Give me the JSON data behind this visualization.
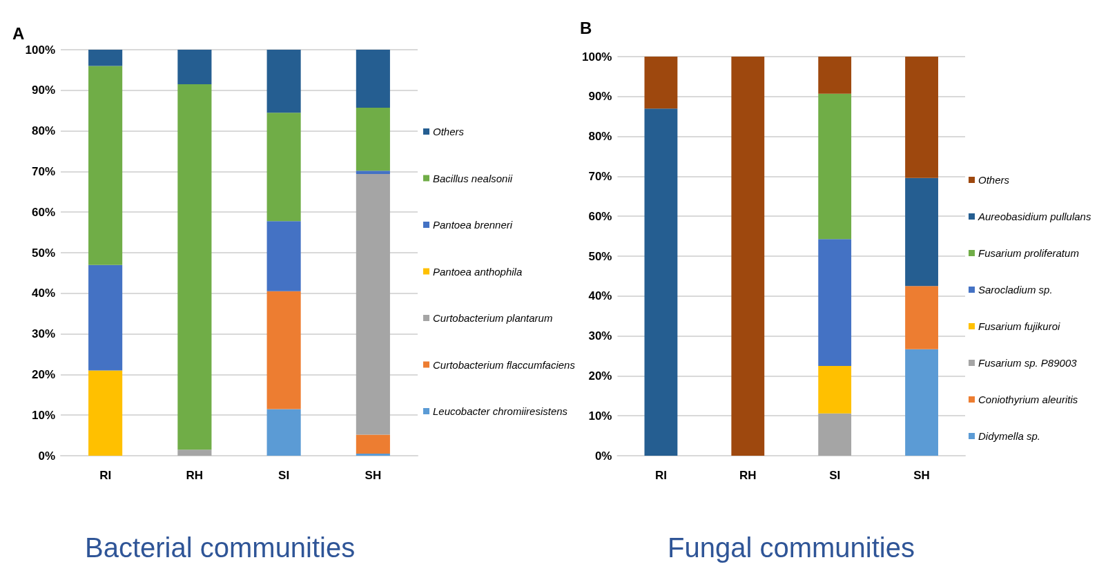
{
  "chart_data": [
    {
      "type": "bar",
      "title": "A",
      "stacked": true,
      "categories": [
        "RI",
        "RH",
        "SI",
        "SH"
      ],
      "ylim": [
        0,
        100
      ],
      "yticks": [
        {
          "value": 0,
          "label": "0%"
        },
        {
          "value": 10,
          "label": "10%"
        },
        {
          "value": 20,
          "label": "20%"
        },
        {
          "value": 30,
          "label": "30%"
        },
        {
          "value": 40,
          "label": "40%"
        },
        {
          "value": 50,
          "label": "50%"
        },
        {
          "value": 60,
          "label": "60%"
        },
        {
          "value": 70,
          "label": "70%"
        },
        {
          "value": 80,
          "label": "80%"
        },
        {
          "value": 90,
          "label": "90%"
        },
        {
          "value": 100,
          "label": "100%"
        }
      ],
      "grid": "y",
      "legend": "right",
      "annotations": [
        "Bacterial communities"
      ],
      "series": [
        {
          "name": "Leucobacter chromiiresistens",
          "color": "#5b9bd5",
          "values": [
            0,
            0,
            11.5,
            0.5
          ]
        },
        {
          "name": "Curtobacterium flaccumfaciens",
          "color": "#ed7d31",
          "values": [
            0,
            0,
            29,
            4.7
          ]
        },
        {
          "name": "Curtobacterium plantarum",
          "color": "#a5a5a5",
          "values": [
            0,
            1.5,
            0,
            64.2
          ]
        },
        {
          "name": "Pantoea anthophila",
          "color": "#ffc000",
          "values": [
            21,
            0,
            0,
            0
          ]
        },
        {
          "name": "Pantoea brenneri",
          "color": "#4472c4",
          "values": [
            26,
            0,
            17.3,
            0.8
          ]
        },
        {
          "name": "Bacillus nealsonii",
          "color": "#70ad47",
          "values": [
            49,
            90,
            26.7,
            15.5
          ]
        },
        {
          "name": "Others",
          "color": "#255e91",
          "values": [
            4,
            8.5,
            15.5,
            14.3
          ]
        }
      ]
    },
    {
      "type": "bar",
      "title": "B",
      "stacked": true,
      "categories": [
        "RI",
        "RH",
        "SI",
        "SH"
      ],
      "ylim": [
        0,
        100
      ],
      "yticks": [
        {
          "value": 0,
          "label": "0%"
        },
        {
          "value": 10,
          "label": "10%"
        },
        {
          "value": 20,
          "label": "20%"
        },
        {
          "value": 30,
          "label": "30%"
        },
        {
          "value": 40,
          "label": "40%"
        },
        {
          "value": 50,
          "label": "50%"
        },
        {
          "value": 60,
          "label": "60%"
        },
        {
          "value": 70,
          "label": "70%"
        },
        {
          "value": 80,
          "label": "80%"
        },
        {
          "value": 90,
          "label": "90%"
        },
        {
          "value": 100,
          "label": "100%"
        }
      ],
      "grid": "y",
      "legend": "right",
      "annotations": [
        "Fungal communities"
      ],
      "series": [
        {
          "name": "Didymella sp.",
          "color": "#5b9bd5",
          "values": [
            0,
            0,
            0,
            26.7
          ]
        },
        {
          "name": "Coniothyrium aleuritis",
          "color": "#ed7d31",
          "values": [
            0,
            0,
            0,
            15.8
          ]
        },
        {
          "name": "Fusarium sp. P89003",
          "color": "#a5a5a5",
          "values": [
            0,
            0,
            10.6,
            0
          ]
        },
        {
          "name": "Fusarium fujikuroi",
          "color": "#ffc000",
          "values": [
            0,
            0,
            11.9,
            0
          ]
        },
        {
          "name": "Sarocladium sp.",
          "color": "#4472c4",
          "values": [
            0,
            0,
            31.8,
            0
          ]
        },
        {
          "name": "Fusarium proliferatum",
          "color": "#70ad47",
          "values": [
            0,
            0,
            36.4,
            0
          ]
        },
        {
          "name": "Aureobasidium pullulans",
          "color": "#255e91",
          "values": [
            87,
            0,
            0,
            27.1
          ]
        },
        {
          "name": "Others",
          "color": "#9e480e",
          "values": [
            13,
            100,
            9.3,
            30.4
          ]
        }
      ]
    }
  ]
}
